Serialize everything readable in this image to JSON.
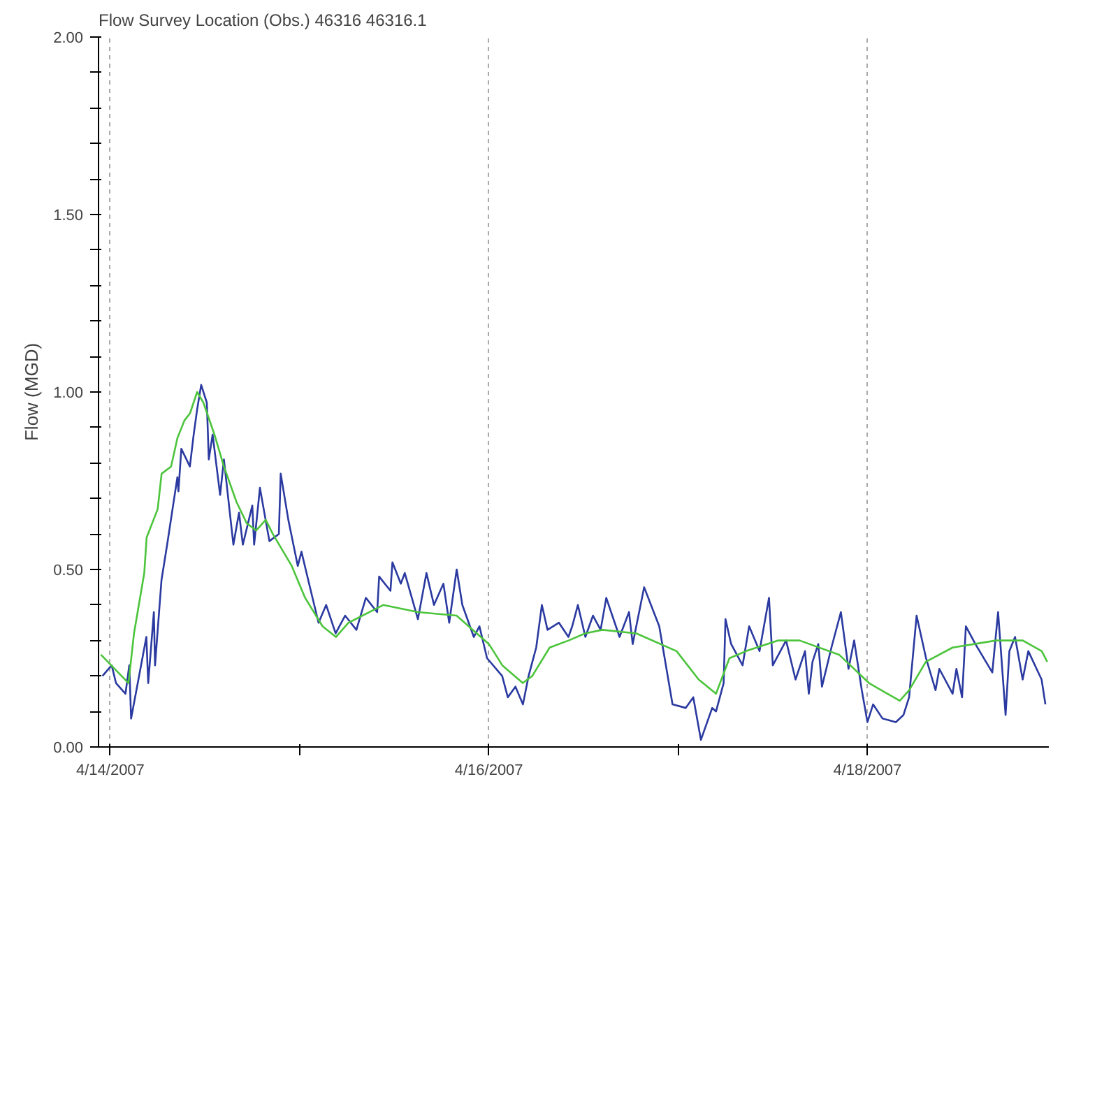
{
  "chart_data": {
    "type": "line",
    "title": "Flow Survey Location (Obs.) 46316 46316.1",
    "ylabel": "Flow (MGD)",
    "xlim": [
      "2007-04-13T22:30",
      "2007-04-18T23:00"
    ],
    "xticks": [
      {
        "value": "2007-04-14",
        "label": "4/14/2007"
      },
      {
        "value": "2007-04-15",
        "label": null
      },
      {
        "value": "2007-04-16",
        "label": "4/16/2007"
      },
      {
        "value": "2007-04-17",
        "label": null
      },
      {
        "value": "2007-04-18",
        "label": "4/18/2007"
      }
    ],
    "ylim": [
      0,
      2
    ],
    "yticks": [
      {
        "value": 0,
        "label": "0.00"
      },
      {
        "value": 0.1,
        "label": null
      },
      {
        "value": 0.2,
        "label": null
      },
      {
        "value": 0.3,
        "label": null
      },
      {
        "value": 0.4,
        "label": null
      },
      {
        "value": 0.5,
        "label": "0.50"
      },
      {
        "value": 0.6,
        "label": null
      },
      {
        "value": 0.7,
        "label": null
      },
      {
        "value": 0.8,
        "label": null
      },
      {
        "value": 0.9,
        "label": null
      },
      {
        "value": 1,
        "label": "1.00"
      },
      {
        "value": 1.1,
        "label": null
      },
      {
        "value": 1.2,
        "label": null
      },
      {
        "value": 1.3,
        "label": null
      },
      {
        "value": 1.4,
        "label": null
      },
      {
        "value": 1.5,
        "label": "1.50"
      },
      {
        "value": 1.6,
        "label": null
      },
      {
        "value": 1.7,
        "label": null
      },
      {
        "value": 1.8,
        "label": null
      },
      {
        "value": 1.9,
        "label": null
      },
      {
        "value": 2,
        "label": "2.00"
      }
    ],
    "grid": "x",
    "series": [
      {
        "color": "#2b3aa0",
        "x": [
          "2007-04-13T23:00",
          "2007-04-14T00:10",
          "2007-04-14T00:43",
          "2007-04-14T01:55",
          "2007-04-14T02:24",
          "2007-04-14T02:38",
          "2007-04-14T04:34",
          "2007-04-14T04:48",
          "2007-04-14T05:31",
          "2007-04-14T05:40",
          "2007-04-14T06:29",
          "2007-04-14T07:12",
          "2007-04-14T08:30",
          "2007-04-14T08:38",
          "2007-04-14T09:00",
          "2007-04-14T10:05",
          "2007-04-14T10:34",
          "2007-04-14T11:00",
          "2007-04-14T11:31",
          "2007-04-14T12:14",
          "2007-04-14T12:29",
          "2007-04-14T12:58",
          "2007-04-14T13:55",
          "2007-04-14T14:24",
          "2007-04-14T15:36",
          "2007-04-14T16:19",
          "2007-04-14T16:48",
          "2007-04-14T18:00",
          "2007-04-14T18:14",
          "2007-04-14T18:58",
          "2007-04-14T20:10",
          "2007-04-14T21:22",
          "2007-04-14T21:36",
          "2007-04-14T22:34",
          "2007-04-14T23:46",
          "2007-04-15T00:14",
          "2007-04-15T01:12",
          "2007-04-15T02:24",
          "2007-04-15T03:22",
          "2007-04-15T04:34",
          "2007-04-15T05:46",
          "2007-04-15T07:12",
          "2007-04-15T08:24",
          "2007-04-15T09:50",
          "2007-04-15T10:05",
          "2007-04-15T11:31",
          "2007-04-15T11:46",
          "2007-04-15T12:50",
          "2007-04-15T13:20",
          "2007-04-15T15:00",
          "2007-04-15T16:05",
          "2007-04-15T17:02",
          "2007-04-15T18:14",
          "2007-04-15T18:58",
          "2007-04-15T19:55",
          "2007-04-15T20:38",
          "2007-04-15T22:05",
          "2007-04-15T22:48",
          "2007-04-15T23:46",
          "2007-04-16T01:41",
          "2007-04-16T02:24",
          "2007-04-16T03:22",
          "2007-04-16T04:19",
          "2007-04-16T05:02",
          "2007-04-16T06:00",
          "2007-04-16T06:43",
          "2007-04-16T07:26",
          "2007-04-16T08:53",
          "2007-04-16T10:05",
          "2007-04-16T10:34",
          "2007-04-16T11:17",
          "2007-04-16T12:14",
          "2007-04-16T13:12",
          "2007-04-16T14:10",
          "2007-04-16T14:53",
          "2007-04-16T16:34",
          "2007-04-16T17:46",
          "2007-04-16T18:14",
          "2007-04-16T19:41",
          "2007-04-16T21:36",
          "2007-04-16T23:17",
          "2007-04-17T00:58",
          "2007-04-17T01:55",
          "2007-04-17T02:53",
          "2007-04-17T04:19",
          "2007-04-17T04:48",
          "2007-04-17T05:46",
          "2007-04-17T06:00",
          "2007-04-17T06:43",
          "2007-04-17T08:10",
          "2007-04-17T09:00",
          "2007-04-17T10:19",
          "2007-04-17T11:31",
          "2007-04-17T12:00",
          "2007-04-17T13:41",
          "2007-04-17T14:53",
          "2007-04-17T16:05",
          "2007-04-17T16:34",
          "2007-04-17T17:02",
          "2007-04-17T17:46",
          "2007-04-17T18:14",
          "2007-04-17T19:26",
          "2007-04-17T20:38",
          "2007-04-17T21:36",
          "2007-04-17T22:19",
          "2007-04-17T23:17",
          "2007-04-18T00:00",
          "2007-04-18T00:43",
          "2007-04-18T01:55",
          "2007-04-18T03:36",
          "2007-04-18T04:34",
          "2007-04-18T05:17",
          "2007-04-18T06:14",
          "2007-04-18T07:26",
          "2007-04-18T08:38",
          "2007-04-18T09:07",
          "2007-04-18T10:48",
          "2007-04-18T11:17",
          "2007-04-18T12:00",
          "2007-04-18T12:29",
          "2007-04-18T13:41",
          "2007-04-18T15:50",
          "2007-04-18T16:34",
          "2007-04-18T17:31",
          "2007-04-18T18:00",
          "2007-04-18T18:43",
          "2007-04-18T19:41",
          "2007-04-18T20:24",
          "2007-04-18T22:05",
          "2007-04-18T22:34"
        ],
        "values": [
          0.2,
          0.23,
          0.18,
          0.15,
          0.23,
          0.08,
          0.31,
          0.18,
          0.38,
          0.23,
          0.47,
          0.57,
          0.76,
          0.72,
          0.84,
          0.79,
          0.88,
          0.95,
          1.02,
          0.97,
          0.81,
          0.88,
          0.71,
          0.81,
          0.57,
          0.66,
          0.57,
          0.68,
          0.57,
          0.73,
          0.58,
          0.6,
          0.77,
          0.64,
          0.51,
          0.55,
          0.46,
          0.35,
          0.4,
          0.32,
          0.37,
          0.33,
          0.42,
          0.38,
          0.48,
          0.44,
          0.52,
          0.46,
          0.49,
          0.36,
          0.49,
          0.4,
          0.46,
          0.35,
          0.5,
          0.4,
          0.31,
          0.34,
          0.25,
          0.2,
          0.14,
          0.17,
          0.12,
          0.2,
          0.28,
          0.4,
          0.33,
          0.35,
          0.31,
          0.34,
          0.4,
          0.31,
          0.37,
          0.33,
          0.42,
          0.31,
          0.38,
          0.29,
          0.45,
          0.34,
          0.12,
          0.11,
          0.14,
          0.02,
          0.11,
          0.1,
          0.18,
          0.36,
          0.29,
          0.23,
          0.34,
          0.27,
          0.42,
          0.23,
          0.3,
          0.19,
          0.27,
          0.15,
          0.24,
          0.29,
          0.17,
          0.28,
          0.38,
          0.22,
          0.3,
          0.16,
          0.07,
          0.12,
          0.08,
          0.07,
          0.09,
          0.14,
          0.37,
          0.25,
          0.16,
          0.22,
          0.15,
          0.22,
          0.14,
          0.34,
          0.29,
          0.21,
          0.38,
          0.09,
          0.27,
          0.31,
          0.19,
          0.27,
          0.19,
          0.12
        ]
      },
      {
        "color": "#4cc43c",
        "x": [
          "2007-04-13T22:48",
          "2007-04-14T02:18",
          "2007-04-14T03:00",
          "2007-04-14T04:18",
          "2007-04-14T04:36",
          "2007-04-14T06:00",
          "2007-04-14T06:30",
          "2007-04-14T07:42",
          "2007-04-14T08:30",
          "2007-04-14T09:24",
          "2007-04-14T10:06",
          "2007-04-14T11:00",
          "2007-04-14T11:48",
          "2007-04-14T13:12",
          "2007-04-14T14:24",
          "2007-04-14T16:00",
          "2007-04-14T17:18",
          "2007-04-14T18:30",
          "2007-04-14T19:42",
          "2007-04-14T20:36",
          "2007-04-14T23:00",
          "2007-04-15T00:42",
          "2007-04-15T02:54",
          "2007-04-15T04:36",
          "2007-04-15T06:12",
          "2007-04-15T10:36",
          "2007-04-15T15:00",
          "2007-04-15T19:54",
          "2007-04-16T00:00",
          "2007-04-16T01:42",
          "2007-04-16T04:18",
          "2007-04-16T05:30",
          "2007-04-16T07:42",
          "2007-04-16T10:06",
          "2007-04-16T12:12",
          "2007-04-16T14:24",
          "2007-04-16T18:42",
          "2007-04-16T23:48",
          "2007-04-17T02:36",
          "2007-04-17T04:48",
          "2007-04-17T06:30",
          "2007-04-17T08:36",
          "2007-04-17T12:42",
          "2007-04-17T15:24",
          "2007-04-17T20:24",
          "2007-04-18T00:12",
          "2007-04-18T04:06",
          "2007-04-18T05:18",
          "2007-04-18T07:24",
          "2007-04-18T10:48",
          "2007-04-18T16:18",
          "2007-04-18T19:42",
          "2007-04-18T22:06",
          "2007-04-18T22:48"
        ],
        "values": [
          0.26,
          0.18,
          0.32,
          0.49,
          0.59,
          0.67,
          0.77,
          0.79,
          0.87,
          0.92,
          0.94,
          1.0,
          0.97,
          0.88,
          0.79,
          0.69,
          0.63,
          0.61,
          0.64,
          0.6,
          0.51,
          0.42,
          0.34,
          0.31,
          0.35,
          0.4,
          0.38,
          0.37,
          0.29,
          0.23,
          0.18,
          0.2,
          0.28,
          0.3,
          0.32,
          0.33,
          0.32,
          0.27,
          0.19,
          0.15,
          0.25,
          0.27,
          0.3,
          0.3,
          0.26,
          0.18,
          0.13,
          0.16,
          0.24,
          0.28,
          0.3,
          0.3,
          0.27,
          0.24
        ]
      }
    ]
  }
}
